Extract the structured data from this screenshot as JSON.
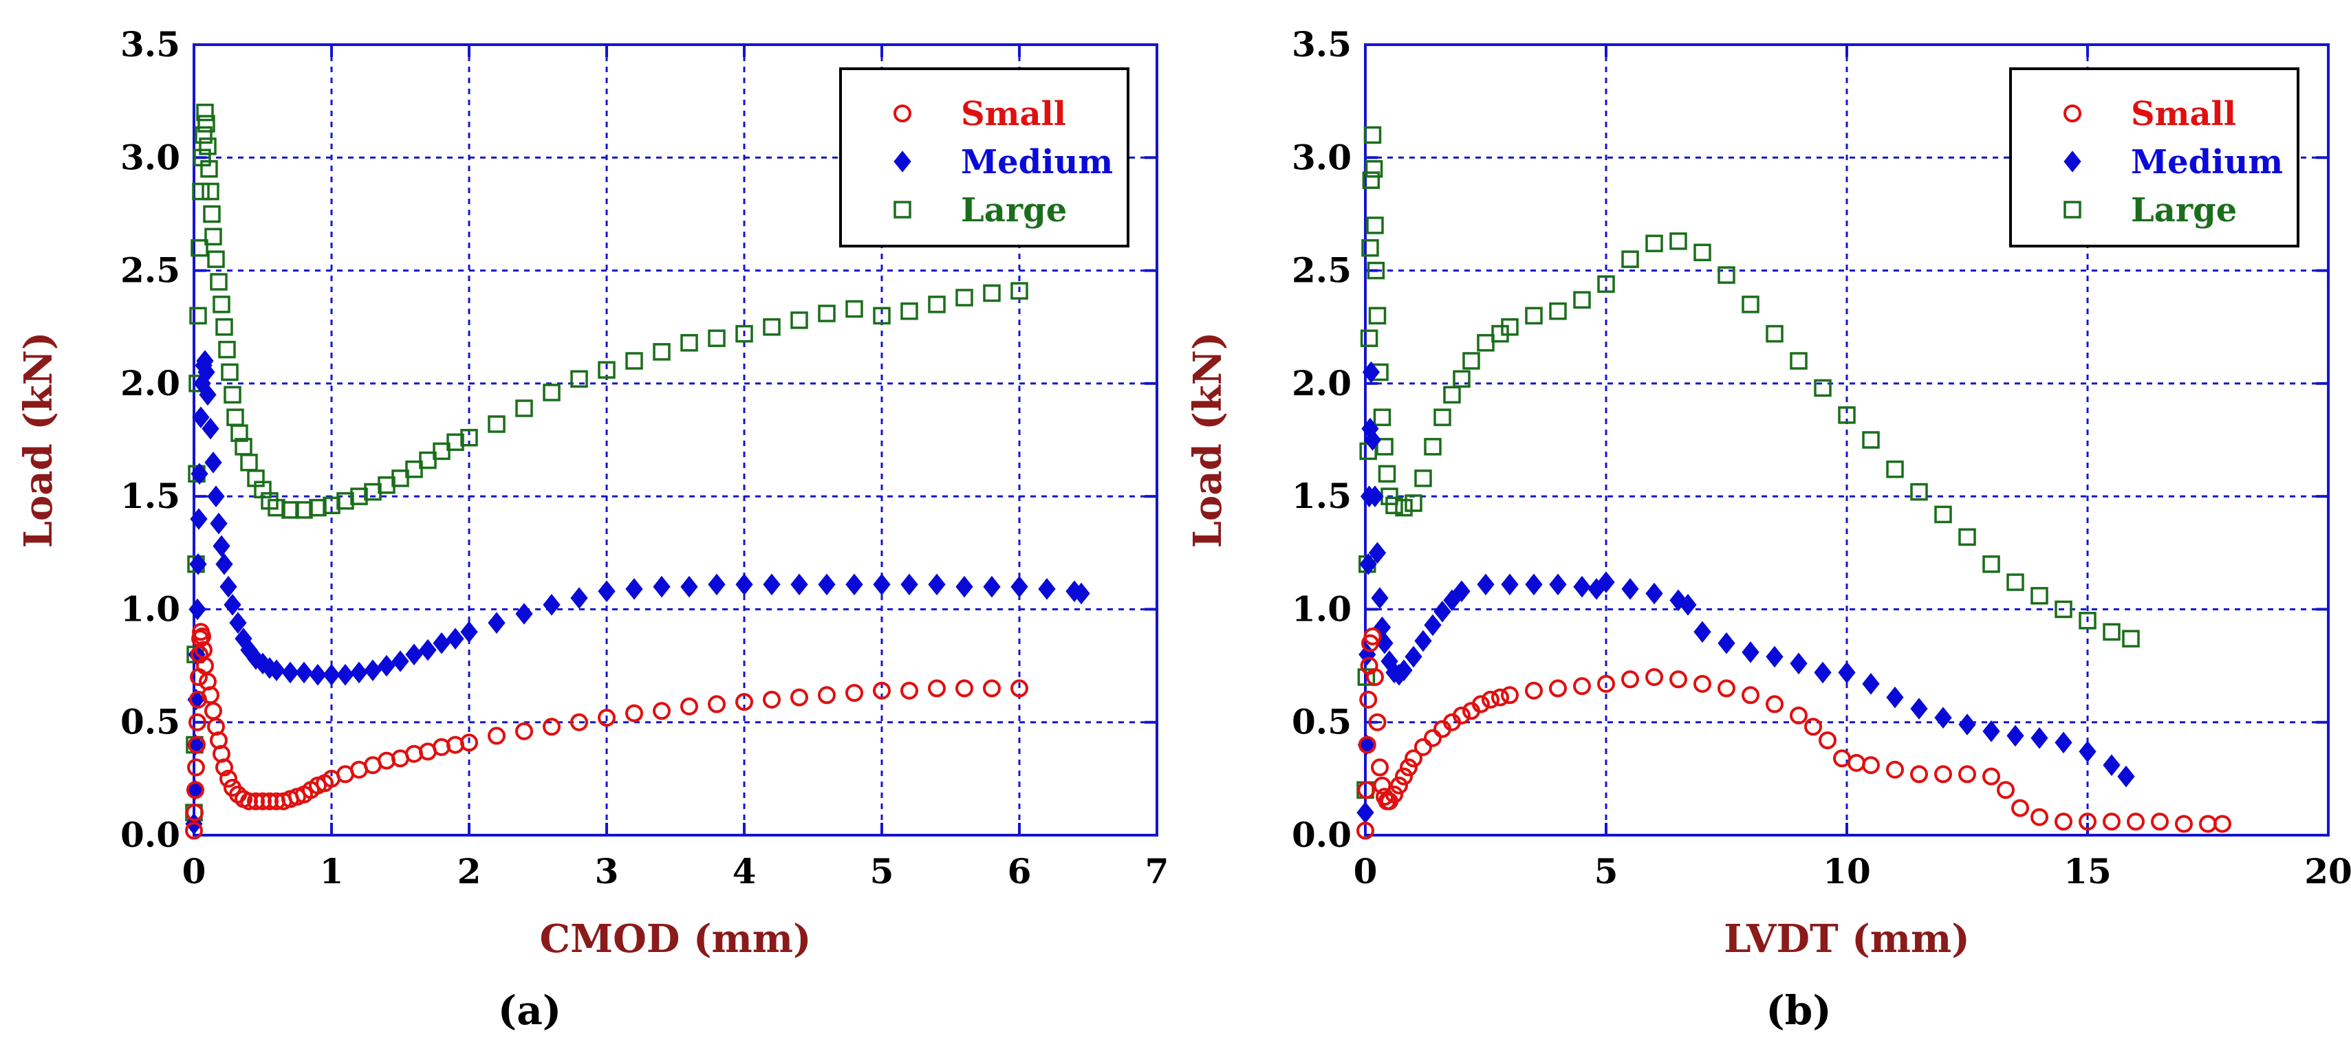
{
  "colors": {
    "Small": "#e01010",
    "Medium": "#0a0ad8",
    "Large": "#1b6e1b",
    "axis": "#1414d2",
    "axis_title": "#8b1a1a"
  },
  "chart_data": [
    {
      "type": "scatter",
      "panel_label": "(a)",
      "xlabel": "CMOD (mm)",
      "ylabel": "Load (kN)",
      "xlim": [
        0,
        7
      ],
      "ylim": [
        0,
        3.5
      ],
      "xticks": [
        "0",
        "1",
        "2",
        "3",
        "4",
        "5",
        "6",
        "7"
      ],
      "yticks": [
        "0.0",
        "0.5",
        "1.0",
        "1.5",
        "2.0",
        "2.5",
        "3.0",
        "3.5"
      ],
      "grid": true,
      "legend_position": "top-right",
      "series": [
        {
          "name": "Small",
          "marker": "circle",
          "x": [
            0.0,
            0.005,
            0.01,
            0.015,
            0.02,
            0.025,
            0.03,
            0.035,
            0.04,
            0.045,
            0.05,
            0.06,
            0.07,
            0.08,
            0.1,
            0.12,
            0.14,
            0.16,
            0.18,
            0.2,
            0.22,
            0.25,
            0.28,
            0.32,
            0.36,
            0.4,
            0.45,
            0.5,
            0.55,
            0.6,
            0.65,
            0.7,
            0.75,
            0.8,
            0.85,
            0.9,
            0.95,
            1.0,
            1.1,
            1.2,
            1.3,
            1.4,
            1.5,
            1.6,
            1.7,
            1.8,
            1.9,
            2.0,
            2.2,
            2.4,
            2.6,
            2.8,
            3.0,
            3.2,
            3.4,
            3.6,
            3.8,
            4.0,
            4.2,
            4.4,
            4.6,
            4.8,
            5.0,
            5.2,
            5.4,
            5.6,
            5.8,
            6.0
          ],
          "y": [
            0.02,
            0.1,
            0.2,
            0.3,
            0.4,
            0.5,
            0.6,
            0.7,
            0.8,
            0.87,
            0.9,
            0.88,
            0.82,
            0.75,
            0.68,
            0.62,
            0.55,
            0.48,
            0.42,
            0.36,
            0.3,
            0.25,
            0.21,
            0.18,
            0.16,
            0.15,
            0.15,
            0.15,
            0.15,
            0.15,
            0.15,
            0.16,
            0.17,
            0.18,
            0.2,
            0.22,
            0.23,
            0.25,
            0.27,
            0.29,
            0.31,
            0.33,
            0.34,
            0.36,
            0.37,
            0.39,
            0.4,
            0.41,
            0.44,
            0.46,
            0.48,
            0.5,
            0.52,
            0.54,
            0.55,
            0.57,
            0.58,
            0.59,
            0.6,
            0.61,
            0.62,
            0.63,
            0.64,
            0.64,
            0.65,
            0.65,
            0.65,
            0.65
          ]
        },
        {
          "name": "Medium",
          "marker": "diamond",
          "x": [
            0.0,
            0.005,
            0.01,
            0.015,
            0.02,
            0.025,
            0.03,
            0.035,
            0.04,
            0.05,
            0.06,
            0.07,
            0.08,
            0.09,
            0.1,
            0.12,
            0.14,
            0.16,
            0.18,
            0.2,
            0.22,
            0.25,
            0.28,
            0.32,
            0.36,
            0.4,
            0.45,
            0.5,
            0.55,
            0.6,
            0.7,
            0.8,
            0.9,
            1.0,
            1.1,
            1.2,
            1.3,
            1.4,
            1.5,
            1.6,
            1.7,
            1.8,
            1.9,
            2.0,
            2.2,
            2.4,
            2.6,
            2.8,
            3.0,
            3.2,
            3.4,
            3.6,
            3.8,
            4.0,
            4.2,
            4.4,
            4.6,
            4.8,
            5.0,
            5.2,
            5.4,
            5.6,
            5.8,
            6.0,
            6.2,
            6.4,
            6.45
          ],
          "y": [
            0.05,
            0.2,
            0.4,
            0.6,
            0.8,
            1.0,
            1.2,
            1.4,
            1.6,
            1.85,
            2.0,
            2.08,
            2.1,
            2.05,
            1.95,
            1.8,
            1.65,
            1.5,
            1.38,
            1.28,
            1.2,
            1.1,
            1.02,
            0.94,
            0.87,
            0.82,
            0.78,
            0.76,
            0.74,
            0.73,
            0.72,
            0.72,
            0.71,
            0.71,
            0.71,
            0.72,
            0.73,
            0.75,
            0.77,
            0.8,
            0.82,
            0.85,
            0.87,
            0.9,
            0.94,
            0.98,
            1.02,
            1.05,
            1.08,
            1.09,
            1.1,
            1.1,
            1.11,
            1.11,
            1.11,
            1.11,
            1.11,
            1.11,
            1.11,
            1.11,
            1.11,
            1.1,
            1.1,
            1.1,
            1.09,
            1.08,
            1.07
          ]
        },
        {
          "name": "Large",
          "marker": "square",
          "x": [
            0.0,
            0.005,
            0.01,
            0.015,
            0.02,
            0.025,
            0.03,
            0.04,
            0.05,
            0.06,
            0.07,
            0.08,
            0.09,
            0.1,
            0.11,
            0.12,
            0.13,
            0.14,
            0.16,
            0.18,
            0.2,
            0.22,
            0.24,
            0.26,
            0.28,
            0.3,
            0.33,
            0.36,
            0.4,
            0.45,
            0.5,
            0.55,
            0.6,
            0.7,
            0.8,
            0.9,
            1.0,
            1.1,
            1.2,
            1.3,
            1.4,
            1.5,
            1.6,
            1.7,
            1.8,
            1.9,
            2.0,
            2.2,
            2.4,
            2.6,
            2.8,
            3.0,
            3.2,
            3.4,
            3.6,
            3.8,
            4.0,
            4.2,
            4.4,
            4.6,
            4.8,
            5.0,
            5.2,
            5.4,
            5.6,
            5.8,
            6.0
          ],
          "y": [
            0.1,
            0.4,
            0.8,
            1.2,
            1.6,
            2.0,
            2.3,
            2.6,
            2.85,
            3.0,
            3.1,
            3.2,
            3.15,
            3.05,
            2.95,
            2.85,
            2.75,
            2.65,
            2.55,
            2.45,
            2.35,
            2.25,
            2.15,
            2.05,
            1.95,
            1.85,
            1.78,
            1.72,
            1.65,
            1.58,
            1.53,
            1.48,
            1.45,
            1.44,
            1.44,
            1.45,
            1.46,
            1.48,
            1.5,
            1.52,
            1.55,
            1.58,
            1.62,
            1.66,
            1.7,
            1.74,
            1.76,
            1.82,
            1.89,
            1.96,
            2.02,
            2.06,
            2.1,
            2.14,
            2.18,
            2.2,
            2.22,
            2.25,
            2.28,
            2.31,
            2.33,
            2.3,
            2.32,
            2.35,
            2.38,
            2.4,
            2.41
          ]
        }
      ]
    },
    {
      "type": "scatter",
      "panel_label": "(b)",
      "xlabel": "LVDT (mm)",
      "ylabel": "Load (kN)",
      "xlim": [
        0,
        20
      ],
      "ylim": [
        0,
        3.5
      ],
      "xticks": [
        "0",
        "5",
        "10",
        "15",
        "20"
      ],
      "yticks": [
        "0.0",
        "0.5",
        "1.0",
        "1.5",
        "2.0",
        "2.5",
        "3.0",
        "3.5"
      ],
      "grid": true,
      "legend_position": "top-right",
      "series": [
        {
          "name": "Small",
          "marker": "circle",
          "x": [
            0.0,
            0.02,
            0.04,
            0.06,
            0.08,
            0.1,
            0.15,
            0.2,
            0.25,
            0.3,
            0.35,
            0.4,
            0.45,
            0.5,
            0.6,
            0.7,
            0.8,
            0.9,
            1.0,
            1.2,
            1.4,
            1.6,
            1.8,
            2.0,
            2.2,
            2.4,
            2.6,
            2.8,
            3.0,
            3.5,
            4.0,
            4.5,
            5.0,
            5.5,
            6.0,
            6.5,
            7.0,
            7.5,
            8.0,
            8.5,
            9.0,
            9.3,
            9.6,
            9.9,
            10.2,
            10.5,
            11.0,
            11.5,
            12.0,
            12.5,
            13.0,
            13.3,
            13.6,
            14.0,
            14.5,
            15.0,
            15.5,
            16.0,
            16.5,
            17.0,
            17.5,
            17.8
          ],
          "y": [
            0.02,
            0.2,
            0.4,
            0.6,
            0.75,
            0.85,
            0.88,
            0.7,
            0.5,
            0.3,
            0.22,
            0.17,
            0.15,
            0.15,
            0.18,
            0.22,
            0.26,
            0.3,
            0.34,
            0.39,
            0.43,
            0.47,
            0.5,
            0.53,
            0.55,
            0.58,
            0.6,
            0.61,
            0.62,
            0.64,
            0.65,
            0.66,
            0.67,
            0.69,
            0.7,
            0.69,
            0.67,
            0.65,
            0.62,
            0.58,
            0.53,
            0.48,
            0.42,
            0.34,
            0.32,
            0.31,
            0.29,
            0.27,
            0.27,
            0.27,
            0.26,
            0.2,
            0.12,
            0.08,
            0.06,
            0.06,
            0.06,
            0.06,
            0.06,
            0.05,
            0.05,
            0.05
          ]
        },
        {
          "name": "Medium",
          "marker": "diamond",
          "x": [
            0.0,
            0.02,
            0.04,
            0.06,
            0.08,
            0.1,
            0.12,
            0.15,
            0.2,
            0.25,
            0.3,
            0.35,
            0.4,
            0.5,
            0.6,
            0.7,
            0.8,
            1.0,
            1.2,
            1.4,
            1.6,
            1.8,
            2.0,
            2.5,
            3.0,
            3.5,
            4.0,
            4.5,
            4.8,
            5.0,
            5.5,
            6.0,
            6.5,
            6.7,
            7.0,
            7.5,
            8.0,
            8.5,
            9.0,
            9.5,
            10.0,
            10.5,
            11.0,
            11.5,
            12.0,
            12.5,
            13.0,
            13.5,
            14.0,
            14.5,
            15.0,
            15.5,
            15.8
          ],
          "y": [
            0.1,
            0.4,
            0.8,
            1.2,
            1.5,
            1.8,
            2.05,
            1.75,
            1.5,
            1.25,
            1.05,
            0.92,
            0.85,
            0.77,
            0.72,
            0.71,
            0.73,
            0.79,
            0.86,
            0.93,
            0.99,
            1.04,
            1.08,
            1.11,
            1.11,
            1.11,
            1.11,
            1.1,
            1.09,
            1.12,
            1.09,
            1.07,
            1.04,
            1.02,
            0.9,
            0.85,
            0.81,
            0.79,
            0.76,
            0.72,
            0.72,
            0.67,
            0.61,
            0.56,
            0.52,
            0.49,
            0.46,
            0.44,
            0.43,
            0.41,
            0.37,
            0.31,
            0.26
          ]
        },
        {
          "name": "Large",
          "marker": "square",
          "x": [
            0.0,
            0.02,
            0.04,
            0.06,
            0.08,
            0.1,
            0.12,
            0.15,
            0.18,
            0.2,
            0.22,
            0.25,
            0.3,
            0.35,
            0.4,
            0.45,
            0.5,
            0.6,
            0.8,
            1.0,
            1.2,
            1.4,
            1.6,
            1.8,
            2.0,
            2.2,
            2.5,
            2.8,
            3.0,
            3.5,
            4.0,
            4.5,
            5.0,
            5.5,
            6.0,
            6.5,
            7.0,
            7.5,
            8.0,
            8.5,
            9.0,
            9.5,
            10.0,
            10.5,
            11.0,
            11.5,
            12.0,
            12.5,
            13.0,
            13.5,
            14.0,
            14.5,
            15.0,
            15.5,
            15.9
          ],
          "y": [
            0.2,
            0.7,
            1.2,
            1.7,
            2.2,
            2.6,
            2.9,
            3.1,
            2.95,
            2.7,
            2.5,
            2.3,
            2.05,
            1.85,
            1.72,
            1.6,
            1.5,
            1.46,
            1.45,
            1.47,
            1.58,
            1.72,
            1.85,
            1.95,
            2.02,
            2.1,
            2.18,
            2.22,
            2.25,
            2.3,
            2.32,
            2.37,
            2.44,
            2.55,
            2.62,
            2.63,
            2.58,
            2.48,
            2.35,
            2.22,
            2.1,
            1.98,
            1.86,
            1.75,
            1.62,
            1.52,
            1.42,
            1.32,
            1.2,
            1.12,
            1.06,
            1.0,
            0.95,
            0.9,
            0.87
          ]
        }
      ]
    }
  ]
}
